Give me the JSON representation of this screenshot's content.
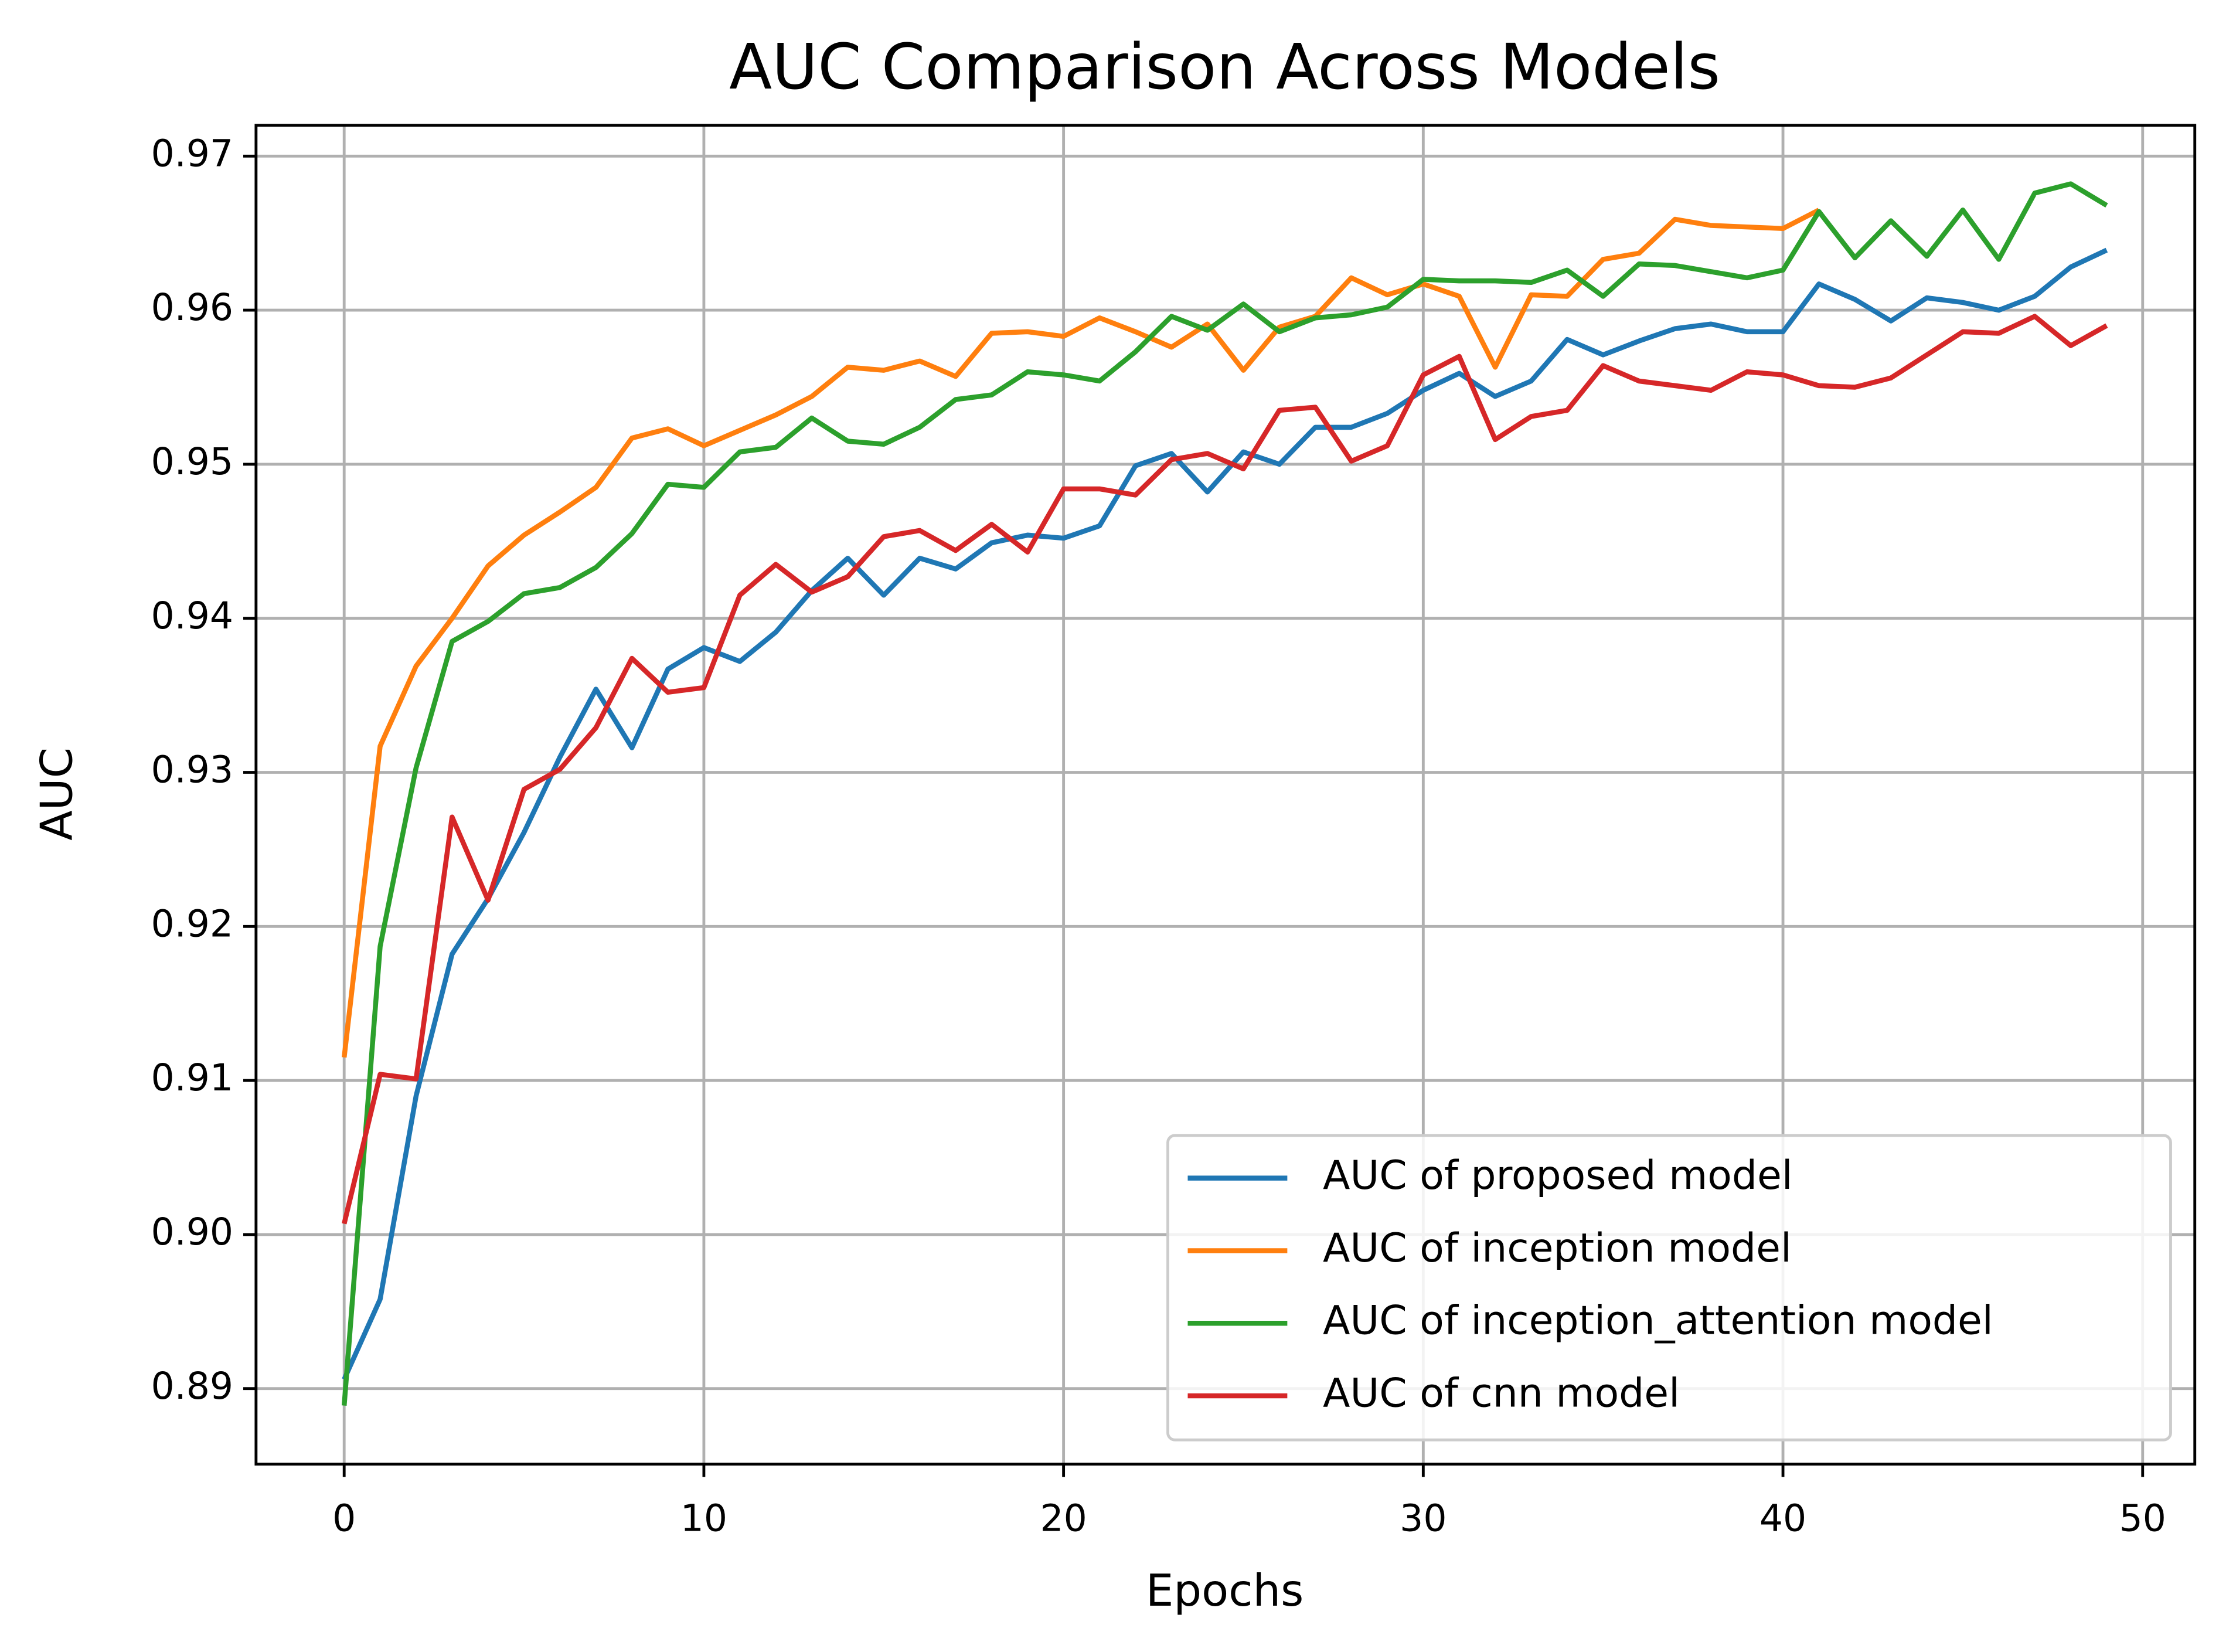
{
  "chart_data": {
    "type": "line",
    "title": "AUC Comparison Across Models",
    "x_label": "Epochs",
    "y_label": "AUC",
    "x": [
      0,
      1,
      2,
      3,
      4,
      5,
      6,
      7,
      8,
      9,
      10,
      11,
      12,
      13,
      14,
      15,
      16,
      17,
      18,
      19,
      20,
      21,
      22,
      23,
      24,
      25,
      26,
      27,
      28,
      29,
      30,
      31,
      32,
      33,
      34,
      35,
      36,
      37,
      38,
      39,
      40,
      41,
      42,
      43,
      44,
      45,
      46,
      47,
      48,
      49
    ],
    "series": [
      {
        "name": "AUC of proposed model",
        "color": "#1f77b4",
        "values": [
          0.8906,
          0.8958,
          0.909,
          0.9182,
          0.9218,
          0.9261,
          0.931,
          0.9354,
          0.9316,
          0.9367,
          0.9381,
          0.9372,
          0.9391,
          0.9418,
          0.9439,
          0.9415,
          0.9439,
          0.9432,
          0.9449,
          0.9454,
          0.9452,
          0.946,
          0.9499,
          0.9507,
          0.9482,
          0.9508,
          0.95,
          0.9524,
          0.9524,
          0.9533,
          0.9548,
          0.9559,
          0.9544,
          0.9554,
          0.9581,
          0.9571,
          0.958,
          0.9588,
          0.9591,
          0.9586,
          0.9586,
          0.9617,
          0.9607,
          0.9593,
          0.9608,
          0.9605,
          0.96,
          0.9609,
          0.9628,
          0.9639
        ]
      },
      {
        "name": "AUC of inception model",
        "color": "#ff7f0e",
        "values": [
          0.9115,
          0.9317,
          0.9369,
          0.94,
          0.9434,
          0.9454,
          0.9469,
          0.9485,
          0.9517,
          0.9523,
          0.9512,
          0.9522,
          0.9532,
          0.9544,
          0.9563,
          0.9561,
          0.9567,
          0.9557,
          0.9585,
          0.9586,
          0.9583,
          0.9595,
          0.9586,
          0.9576,
          0.9591,
          0.9561,
          0.9589,
          0.9596,
          0.9621,
          0.961,
          0.9617,
          0.9609,
          0.9563,
          0.961,
          0.9609,
          0.9633,
          0.9637,
          0.9659,
          0.9655,
          0.9654,
          0.9653,
          0.9665,
          null,
          null,
          null,
          null,
          null,
          null,
          null,
          null
        ]
      },
      {
        "name": "AUC of inception_attention model",
        "color": "#2ca02c",
        "values": [
          0.8889,
          0.9187,
          0.9303,
          0.9385,
          0.9398,
          0.9416,
          0.942,
          0.9433,
          0.9455,
          0.9487,
          0.9485,
          0.9508,
          0.9511,
          0.953,
          0.9515,
          0.9513,
          0.9524,
          0.9542,
          0.9545,
          0.956,
          0.9558,
          0.9554,
          0.9573,
          0.9596,
          0.9587,
          0.9604,
          0.9586,
          0.9595,
          0.9597,
          0.9602,
          0.962,
          0.9619,
          0.9619,
          0.9618,
          0.9626,
          0.9609,
          0.963,
          0.9629,
          0.9625,
          0.9621,
          0.9626,
          0.9664,
          0.9634,
          0.9658,
          0.9635,
          0.9665,
          0.9633,
          0.9676,
          0.9682,
          0.9668
        ]
      },
      {
        "name": "AUC of cnn model",
        "color": "#d62728",
        "values": [
          0.9007,
          0.9104,
          0.9101,
          0.9271,
          0.9217,
          0.9289,
          0.9302,
          0.9329,
          0.9374,
          0.9352,
          0.9355,
          0.9415,
          0.9435,
          0.9417,
          0.9427,
          0.9453,
          0.9457,
          0.9444,
          0.9461,
          0.9443,
          0.9484,
          0.9484,
          0.948,
          0.9503,
          0.9507,
          0.9497,
          0.9535,
          0.9537,
          0.9502,
          0.9512,
          0.9558,
          0.957,
          0.9516,
          0.9531,
          0.9535,
          0.9564,
          0.9554,
          0.9551,
          0.9548,
          0.956,
          0.9558,
          0.9551,
          0.955,
          0.9556,
          0.9571,
          0.9586,
          0.9585,
          0.9596,
          0.9577,
          0.959
        ]
      }
    ],
    "xlim": [
      -2.45,
      51.45
    ],
    "xticks": [
      0,
      10,
      20,
      30,
      40,
      50
    ],
    "ylim": [
      0.8851,
      0.972
    ],
    "yticks": [
      0.89,
      {
        "value": 0.9,
        "label": "0.90"
      },
      0.91,
      0.92,
      0.93,
      0.94,
      0.95,
      0.96,
      0.97
    ],
    "grid": true,
    "legend": "lower right"
  }
}
